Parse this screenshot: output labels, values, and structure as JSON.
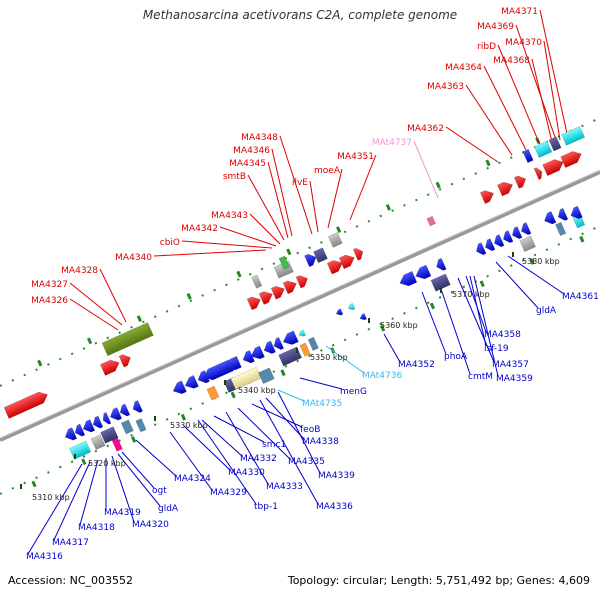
{
  "title": "Methanosarcina acetivorans C2A, complete genome",
  "footer": {
    "accession": "Accession: NC_003552",
    "summary": "Topology: circular; Length: 5,751,492 bp; Genes: 4,609"
  },
  "colors": {
    "forward_label": "#dd0000",
    "reverse_label": "#0000cc",
    "trna_forward_label": "#ee99cc",
    "trna_reverse_label": "#33bbee",
    "backbone": "#888888",
    "tick": "#228822"
  },
  "scale_labels": [
    "5310 kbp",
    "5320 kbp",
    "5330 kbp",
    "5340 kbp",
    "5350 kbp",
    "5360 kbp",
    "5370 kbp",
    "5380 kbp"
  ],
  "forward_labels": [
    "MA4326",
    "MA4327",
    "MA4328",
    "MA4340",
    "cbiO",
    "MA4342",
    "MA4343",
    "smtB",
    "MA4345",
    "MA4346",
    "MA4348",
    "ilvE",
    "moeA",
    "MA4351",
    "MAt4737",
    "MA4362",
    "MA4363",
    "MA4364",
    "ribD",
    "MA4368",
    "MA4370",
    "MA4369",
    "MA4371"
  ],
  "reverse_labels": [
    "MA4316",
    "MA4317",
    "MA4318",
    "MA4319",
    "MA4320",
    "gldA",
    "ogt",
    "MA4324",
    "MA4329",
    "MA4330",
    "tbp-1",
    "MA4332",
    "smc1",
    "MA4333",
    "MA4335",
    "feoB",
    "MA4336",
    "MA4338",
    "MA4339",
    "MAt4735",
    "menG",
    "MAt4736",
    "MA4352",
    "phoA",
    "cmtM",
    "MA4357",
    "MA4359",
    "isf-19",
    "MA4358",
    "gldA",
    "MA4361"
  ]
}
